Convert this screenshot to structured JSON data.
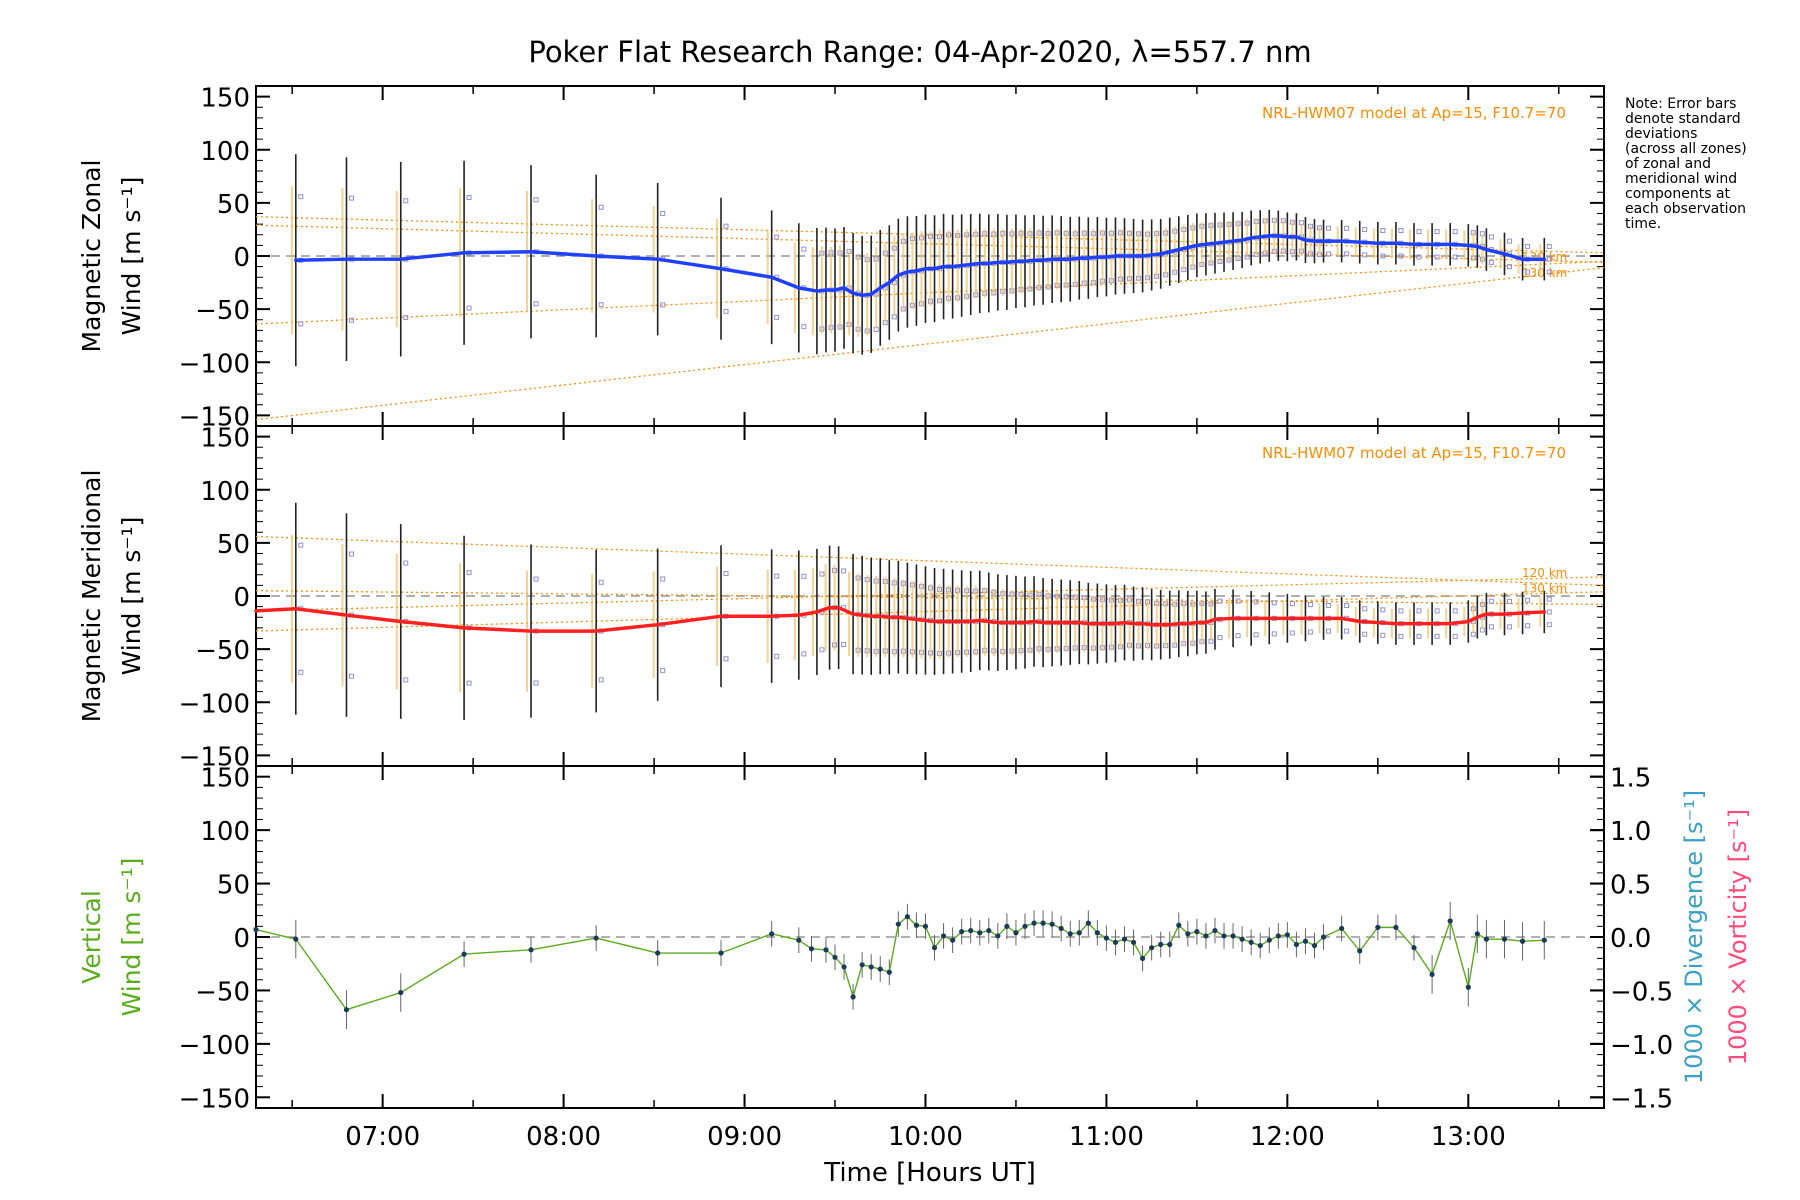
{
  "title": "Poker Flat Research Range: 04-Apr-2020, λ=557.7 nm",
  "note_lines": [
    "Note: Error bars",
    "denote standard",
    "deviations",
    "(across all zones)",
    "of zonal and",
    "meridional wind",
    "components at",
    "each observation",
    "time."
  ],
  "model_label": "NRL-HWM07 model at Ap=15, F10.7=70",
  "altitude_labels": [
    "120 km",
    "130 km"
  ],
  "colors": {
    "zonal": "#2040ff",
    "meridional": "#ff2020",
    "vertical": "#5aac1c",
    "model": "#ff8c00",
    "samples": "#9090d8",
    "divergence": "#3aa0c8",
    "vorticity": "#ff4a7a",
    "errorbar": "#222222",
    "zero_line": "#808080"
  },
  "chart_data": [
    {
      "type": "line",
      "panel": "zonal",
      "ylabel_lines": [
        "Magnetic Zonal",
        "Wind [m s⁻¹]"
      ],
      "ylim": [
        -160,
        160
      ],
      "xlim": [
        6.3,
        13.75
      ],
      "yticks": [
        "150",
        "100",
        "50",
        "0",
        "−50",
        "−100",
        "−150"
      ],
      "series": [
        {
          "x": [
            6.52,
            6.8,
            7.1,
            7.45,
            7.82,
            8.18,
            8.52,
            8.87,
            9.15,
            9.3,
            9.4,
            9.45,
            9.5,
            9.55,
            9.6,
            9.65,
            9.7,
            9.75,
            9.8,
            9.85,
            9.9,
            9.95,
            10.0,
            10.05,
            10.1,
            10.15,
            10.2,
            10.25,
            10.3,
            10.35,
            10.4,
            10.45,
            10.5,
            10.55,
            10.6,
            10.65,
            10.7,
            10.75,
            10.8,
            10.85,
            10.9,
            10.95,
            11.0,
            11.05,
            11.1,
            11.15,
            11.2,
            11.25,
            11.3,
            11.35,
            11.4,
            11.45,
            11.5,
            11.55,
            11.6,
            11.65,
            11.7,
            11.75,
            11.8,
            11.85,
            11.9,
            11.95,
            12.0,
            12.05,
            12.1,
            12.15,
            12.2,
            12.3,
            12.4,
            12.5,
            12.6,
            12.7,
            12.8,
            12.9,
            13.0,
            13.05,
            13.1,
            13.2,
            13.3,
            13.42
          ],
          "values": [
            -4,
            -3,
            -3,
            3,
            4,
            0,
            -3,
            -12,
            -20,
            -30,
            -33,
            -32,
            -32,
            -30,
            -35,
            -37,
            -36,
            -30,
            -25,
            -18,
            -15,
            -14,
            -12,
            -12,
            -10,
            -10,
            -9,
            -8,
            -7,
            -7,
            -6,
            -6,
            -5,
            -5,
            -4,
            -4,
            -3,
            -3,
            -3,
            -2,
            -2,
            -1,
            -1,
            0,
            0,
            0,
            0,
            1,
            2,
            4,
            6,
            8,
            10,
            11,
            12,
            13,
            14,
            15,
            17,
            18,
            19,
            19,
            18,
            18,
            15,
            14,
            14,
            14,
            13,
            12,
            12,
            11,
            11,
            11,
            10,
            9,
            6,
            2,
            -3,
            -3
          ]
        }
      ],
      "model_lines": [
        {
          "x": [
            6.3,
            13.75
          ],
          "values": [
            37,
            3
          ]
        },
        {
          "x": [
            6.3,
            13.75
          ],
          "values": [
            -64,
            -5
          ]
        },
        {
          "x": [
            6.3,
            13.75
          ],
          "values": [
            -154,
            -11
          ]
        },
        {
          "x": [
            6.3,
            13.75
          ],
          "values": [
            29,
            -6
          ]
        }
      ]
    },
    {
      "type": "line",
      "panel": "meridional",
      "ylabel_lines": [
        "Magnetic Meridional",
        "Wind [m s⁻¹]"
      ],
      "ylim": [
        -160,
        160
      ],
      "xlim": [
        6.3,
        13.75
      ],
      "yticks": [
        "150",
        "100",
        "50",
        "0",
        "−50",
        "−100",
        "−150"
      ],
      "series": [
        {
          "x": [
            6.3,
            6.52,
            6.8,
            7.1,
            7.45,
            7.82,
            8.18,
            8.52,
            8.87,
            9.15,
            9.3,
            9.4,
            9.47,
            9.52,
            9.6,
            9.65,
            9.7,
            9.75,
            9.8,
            9.85,
            9.9,
            9.95,
            10.0,
            10.05,
            10.1,
            10.15,
            10.2,
            10.25,
            10.3,
            10.35,
            10.4,
            10.45,
            10.5,
            10.55,
            10.6,
            10.65,
            10.7,
            10.75,
            10.8,
            10.85,
            10.9,
            10.95,
            11.0,
            11.05,
            11.1,
            11.15,
            11.2,
            11.25,
            11.3,
            11.35,
            11.4,
            11.45,
            11.5,
            11.55,
            11.6,
            11.7,
            11.8,
            11.9,
            12.0,
            12.1,
            12.2,
            12.3,
            12.4,
            12.5,
            12.6,
            12.7,
            12.8,
            12.9,
            13.0,
            13.05,
            13.1,
            13.2,
            13.3,
            13.42
          ],
          "values": [
            -14,
            -12,
            -18,
            -24,
            -30,
            -33,
            -33,
            -27,
            -19,
            -19,
            -18,
            -15,
            -11,
            -11,
            -17,
            -18,
            -19,
            -19,
            -20,
            -20,
            -21,
            -22,
            -23,
            -24,
            -24,
            -24,
            -24,
            -24,
            -23,
            -24,
            -25,
            -25,
            -25,
            -25,
            -24,
            -25,
            -25,
            -25,
            -25,
            -25,
            -26,
            -26,
            -26,
            -26,
            -25,
            -26,
            -26,
            -27,
            -27,
            -27,
            -26,
            -26,
            -25,
            -25,
            -22,
            -21,
            -21,
            -21,
            -21,
            -21,
            -21,
            -21,
            -24,
            -25,
            -26,
            -26,
            -26,
            -26,
            -24,
            -20,
            -17,
            -17,
            -16,
            -15
          ]
        }
      ],
      "model_lines": [
        {
          "x": [
            6.3,
            13.75
          ],
          "values": [
            56,
            10
          ]
        },
        {
          "x": [
            6.3,
            13.75
          ],
          "values": [
            5,
            -8
          ]
        },
        {
          "x": [
            6.3,
            13.75
          ],
          "values": [
            -14,
            18
          ]
        },
        {
          "x": [
            6.3,
            13.75
          ],
          "values": [
            -33,
            4
          ]
        }
      ]
    },
    {
      "type": "line",
      "panel": "vertical",
      "ylabel_lines": [
        "Vertical",
        "Wind [m s⁻¹]"
      ],
      "ylim": [
        -160,
        160
      ],
      "xlim": [
        6.3,
        13.75
      ],
      "xticks": [
        "07:00",
        "08:00",
        "09:00",
        "10:00",
        "11:00",
        "12:00",
        "13:00"
      ],
      "xtick_hours": [
        7,
        8,
        9,
        10,
        11,
        12,
        13
      ],
      "xlabel": "Time [Hours UT]",
      "yticks": [
        "150",
        "100",
        "50",
        "0",
        "−50",
        "−100",
        "−150"
      ],
      "right_axis": {
        "ylim": [
          -1.6,
          1.6
        ],
        "ticks": [
          "1.5",
          "1.0",
          "0.5",
          "0.0",
          "−0.5",
          "−1.0",
          "−1.5"
        ],
        "label_divergence": "1000 × Divergence [s⁻¹]",
        "label_vorticity": "1000 × Vorticity [s⁻¹]"
      },
      "series": [
        {
          "x": [
            6.3,
            6.52,
            6.8,
            7.1,
            7.45,
            7.82,
            8.18,
            8.52,
            8.87,
            9.15,
            9.3,
            9.37,
            9.45,
            9.5,
            9.55,
            9.6,
            9.65,
            9.7,
            9.75,
            9.8,
            9.85,
            9.9,
            9.95,
            10.0,
            10.05,
            10.1,
            10.15,
            10.2,
            10.25,
            10.3,
            10.35,
            10.4,
            10.45,
            10.5,
            10.55,
            10.6,
            10.65,
            10.7,
            10.75,
            10.8,
            10.85,
            10.9,
            10.95,
            11.0,
            11.05,
            11.1,
            11.15,
            11.2,
            11.25,
            11.3,
            11.35,
            11.4,
            11.45,
            11.5,
            11.55,
            11.6,
            11.65,
            11.7,
            11.75,
            11.8,
            11.85,
            11.9,
            11.95,
            12.0,
            12.05,
            12.1,
            12.15,
            12.2,
            12.3,
            12.4,
            12.5,
            12.6,
            12.7,
            12.8,
            12.9,
            13.0,
            13.05,
            13.1,
            13.2,
            13.3,
            13.42
          ],
          "values": [
            7,
            -2,
            -68,
            -52,
            -16,
            -12,
            -1,
            -15,
            -15,
            3,
            -3,
            -11,
            -12,
            -19,
            -28,
            -56,
            -26,
            -28,
            -30,
            -33,
            12,
            19,
            11,
            10,
            -10,
            1,
            -3,
            5,
            6,
            4,
            6,
            1,
            10,
            4,
            10,
            13,
            13,
            12,
            8,
            3,
            4,
            13,
            4,
            -1,
            -5,
            -2,
            -5,
            -20,
            -10,
            -7,
            -7,
            11,
            3,
            5,
            1,
            6,
            1,
            1,
            -2,
            -5,
            -8,
            -3,
            1,
            2,
            -7,
            -4,
            -8,
            0,
            8,
            -13,
            9,
            9,
            -10,
            -35,
            15,
            -47,
            3,
            -2,
            -2,
            -4,
            -3
          ]
        }
      ]
    }
  ]
}
